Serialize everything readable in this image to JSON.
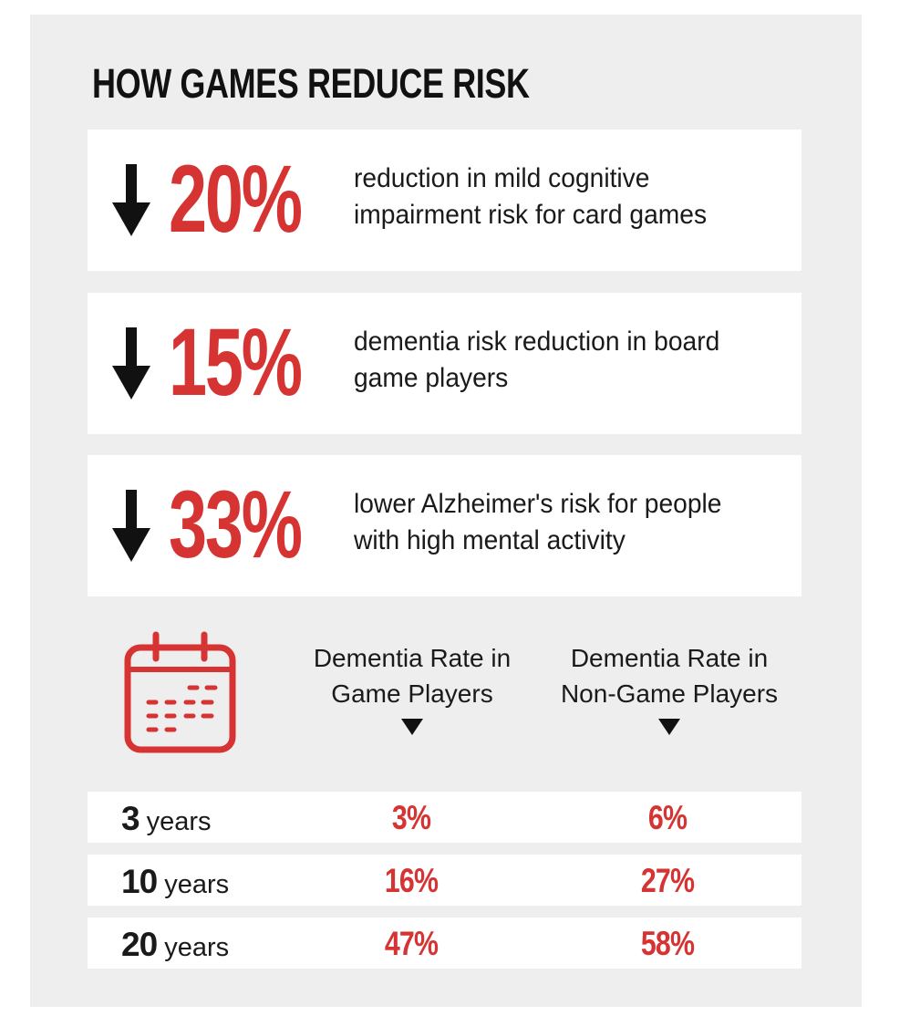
{
  "title": "HOW GAMES REDUCE RISK",
  "stats": [
    {
      "value": "20%",
      "description": "reduction in mild cognitive impairment risk for card games"
    },
    {
      "value": "15%",
      "description": "dementia risk reduction in board game players"
    },
    {
      "value": "33%",
      "description": "lower Alzheimer's risk for people with high mental activity"
    }
  ],
  "table": {
    "columns": [
      "Dementia Rate in Game Players",
      "Dementia Rate in Non-Game Players"
    ],
    "rows": [
      {
        "period_number": "3",
        "period_unit": "years",
        "game": "3%",
        "non_game": "6%"
      },
      {
        "period_number": "10",
        "period_unit": "years",
        "game": "16%",
        "non_game": "27%"
      },
      {
        "period_number": "20",
        "period_unit": "years",
        "game": "47%",
        "non_game": "58%"
      }
    ]
  },
  "icons": {
    "stat_arrow": "down-arrow-icon",
    "table": "calendar-icon"
  },
  "colors": {
    "accent": "#d63333",
    "text": "#111111",
    "panel": "#eeeeee",
    "card": "#ffffff"
  }
}
